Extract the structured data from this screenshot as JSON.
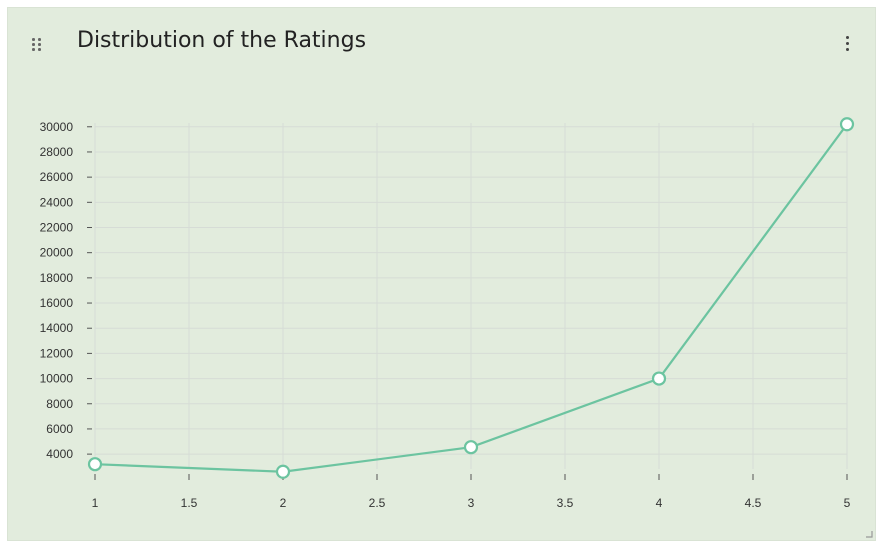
{
  "card": {
    "title": "Distribution of the Ratings",
    "drag_icon": "drag-dots-icon",
    "menu_icon": "vertical-ellipsis-icon"
  },
  "colors": {
    "background": "#e2ecdd",
    "line": "#6cc4a0",
    "grid": "#d6dcd6"
  },
  "chart_data": {
    "type": "line",
    "title": "",
    "xlabel": "",
    "ylabel": "",
    "x": [
      1,
      2,
      3,
      4,
      5
    ],
    "series": [
      {
        "values": [
          3200,
          2600,
          4550,
          10000,
          30200
        ]
      }
    ],
    "xlim": [
      1,
      5
    ],
    "ylim": [
      2500,
      30300
    ],
    "xticks": [
      "1",
      "1.5",
      "2",
      "2.5",
      "3",
      "3.5",
      "4",
      "4.5",
      "5"
    ],
    "yticks": [
      "4000",
      "6000",
      "8000",
      "10000",
      "12000",
      "14000",
      "16000",
      "18000",
      "20000",
      "22000",
      "24000",
      "26000",
      "28000",
      "30000"
    ],
    "grid": true
  }
}
